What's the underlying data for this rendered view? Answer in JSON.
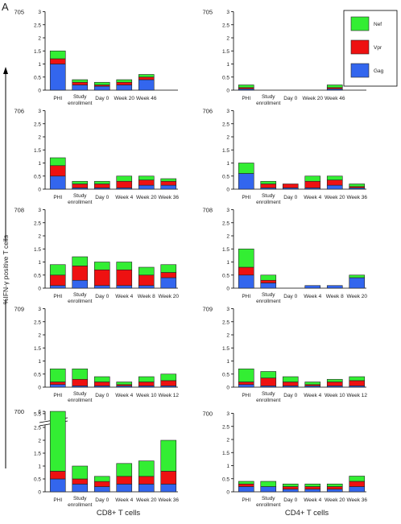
{
  "panel_letter": "A",
  "y_axis_label": "%IFN-γ positive T cells",
  "x_labels": {
    "left": "CD8+ T cells",
    "right": "CD4+ T cells"
  },
  "legend": [
    {
      "name": "Nef",
      "color": "#33ee33"
    },
    {
      "name": "Vpr",
      "color": "#ee1111"
    },
    {
      "name": "Gag",
      "color": "#3366ee"
    }
  ],
  "stack_order": [
    "Gag",
    "Vpr",
    "Nef"
  ],
  "chart_data": [
    {
      "type": "bar",
      "stacked": true,
      "patient": "705",
      "cell_type": "CD8+ T cells",
      "categories": [
        "PHI",
        "Study enrollment",
        "Day 0",
        "Week 20",
        "Week 46"
      ],
      "yticks": [
        "0",
        "0.5",
        "1",
        "1.5",
        "2",
        "2.5",
        "3"
      ],
      "ylim": [
        0,
        3
      ],
      "series": [
        {
          "name": "Gag",
          "values": [
            1.0,
            0.2,
            0.15,
            0.2,
            0.4
          ]
        },
        {
          "name": "Vpr",
          "values": [
            0.2,
            0.1,
            0.05,
            0.1,
            0.1
          ]
        },
        {
          "name": "Nef",
          "values": [
            0.3,
            0.1,
            0.1,
            0.1,
            0.1
          ]
        }
      ]
    },
    {
      "type": "bar",
      "stacked": true,
      "patient": "705",
      "cell_type": "CD4+ T cells",
      "categories": [
        "PHI",
        "Study enrollment",
        "Day 0",
        "Week 20",
        "Week 46"
      ],
      "yticks": [
        "0",
        "0.5",
        "1",
        "1.5",
        "2",
        "2.5",
        "3"
      ],
      "ylim": [
        0,
        3
      ],
      "series": [
        {
          "name": "Gag",
          "values": [
            0.05,
            0,
            0,
            0,
            0.05
          ]
        },
        {
          "name": "Vpr",
          "values": [
            0.05,
            0,
            0,
            0,
            0.05
          ]
        },
        {
          "name": "Nef",
          "values": [
            0.1,
            0,
            0,
            0,
            0.1
          ]
        }
      ]
    },
    {
      "type": "bar",
      "stacked": true,
      "patient": "706",
      "cell_type": "CD8+ T cells",
      "categories": [
        "PHI",
        "Study enrollment",
        "Day 0",
        "Week 4",
        "Week 20",
        "Week 36"
      ],
      "yticks": [
        "0",
        "0.5",
        "1",
        "1.5",
        "2",
        "2.5",
        "3"
      ],
      "ylim": [
        0,
        3
      ],
      "series": [
        {
          "name": "Gag",
          "values": [
            0.5,
            0.05,
            0.05,
            0.05,
            0.15,
            0.15
          ]
        },
        {
          "name": "Vpr",
          "values": [
            0.4,
            0.15,
            0.15,
            0.25,
            0.2,
            0.15
          ]
        },
        {
          "name": "Nef",
          "values": [
            0.3,
            0.1,
            0.1,
            0.2,
            0.15,
            0.1
          ]
        }
      ]
    },
    {
      "type": "bar",
      "stacked": true,
      "patient": "706",
      "cell_type": "CD4+ T cells",
      "categories": [
        "PHI",
        "Study enrollment",
        "Day 0",
        "Week 4",
        "Week 20",
        "Week 36"
      ],
      "yticks": [
        "0",
        "0.5",
        "1",
        "1.5",
        "2",
        "2.5",
        "3"
      ],
      "ylim": [
        0,
        3
      ],
      "series": [
        {
          "name": "Gag",
          "values": [
            0.6,
            0.05,
            0.05,
            0.05,
            0.15,
            0.05
          ]
        },
        {
          "name": "Vpr",
          "values": [
            0,
            0.15,
            0.15,
            0.25,
            0.2,
            0.05
          ]
        },
        {
          "name": "Nef",
          "values": [
            0.4,
            0.1,
            0,
            0.2,
            0.15,
            0.1
          ]
        }
      ]
    },
    {
      "type": "bar",
      "stacked": true,
      "patient": "708",
      "cell_type": "CD8+ T cells",
      "categories": [
        "PHI",
        "Study enrollment",
        "Day 0",
        "Week 4",
        "Week 8",
        "Week 20"
      ],
      "yticks": [
        "0",
        "0.5",
        "1",
        "1.5",
        "2",
        "2.5",
        "3"
      ],
      "ylim": [
        0,
        3
      ],
      "series": [
        {
          "name": "Gag",
          "values": [
            0.1,
            0.3,
            0.1,
            0.1,
            0.1,
            0.4
          ]
        },
        {
          "name": "Vpr",
          "values": [
            0.4,
            0.55,
            0.6,
            0.6,
            0.4,
            0.2
          ]
        },
        {
          "name": "Nef",
          "values": [
            0.4,
            0.35,
            0.3,
            0.3,
            0.3,
            0.3
          ]
        }
      ]
    },
    {
      "type": "bar",
      "stacked": true,
      "patient": "708",
      "cell_type": "CD4+ T cells",
      "categories": [
        "PHI",
        "Study enrollment",
        "Day 0",
        "Week 4",
        "Week 8",
        "Week 20"
      ],
      "yticks": [
        "0",
        "0.5",
        "1",
        "1.5",
        "2",
        "2.5",
        "3"
      ],
      "ylim": [
        0,
        3
      ],
      "series": [
        {
          "name": "Gag",
          "values": [
            0.5,
            0.2,
            0,
            0.1,
            0.1,
            0.4
          ]
        },
        {
          "name": "Vpr",
          "values": [
            0.3,
            0.1,
            0,
            0,
            0,
            0
          ]
        },
        {
          "name": "Nef",
          "values": [
            0.7,
            0.2,
            0,
            0,
            0,
            0.1
          ]
        }
      ]
    },
    {
      "type": "bar",
      "stacked": true,
      "patient": "709",
      "cell_type": "CD8+ T cells",
      "categories": [
        "PHI",
        "Study enrollment",
        "Day 0",
        "Week 4",
        "Week 10",
        "Week 12"
      ],
      "yticks": [
        "0",
        "0.5",
        "1",
        "1.5",
        "2",
        "2.5",
        "3"
      ],
      "ylim": [
        0,
        3
      ],
      "series": [
        {
          "name": "Gag",
          "values": [
            0.1,
            0.05,
            0.05,
            0.05,
            0.05,
            0.05
          ]
        },
        {
          "name": "Vpr",
          "values": [
            0.1,
            0.25,
            0.15,
            0.05,
            0.15,
            0.2
          ]
        },
        {
          "name": "Nef",
          "values": [
            0.5,
            0.4,
            0.2,
            0.1,
            0.2,
            0.25
          ]
        }
      ]
    },
    {
      "type": "bar",
      "stacked": true,
      "patient": "709",
      "cell_type": "CD4+ T cells",
      "categories": [
        "PHI",
        "Study enrollment",
        "Day 0",
        "Week 4",
        "Week 10",
        "Week 12"
      ],
      "yticks": [
        "0",
        "0.5",
        "1",
        "1.5",
        "2",
        "2.5",
        "3"
      ],
      "ylim": [
        0,
        3
      ],
      "series": [
        {
          "name": "Gag",
          "values": [
            0.1,
            0.05,
            0.05,
            0.05,
            0.05,
            0.05
          ]
        },
        {
          "name": "Vpr",
          "values": [
            0.1,
            0.3,
            0.15,
            0.05,
            0.15,
            0.2
          ]
        },
        {
          "name": "Nef",
          "values": [
            0.5,
            0.25,
            0.2,
            0.1,
            0.1,
            0.15
          ]
        }
      ]
    },
    {
      "type": "bar",
      "stacked": true,
      "patient": "700",
      "cell_type": "CD8+ T cells",
      "axis_break": true,
      "categories": [
        "PHI",
        "Study enrollment",
        "Day 0",
        "Week 4",
        "Week 20",
        "Week 36"
      ],
      "yticks": [
        "0",
        "0.5",
        "1",
        "1.5",
        "2",
        "2.5",
        "3",
        "5.5",
        "6"
      ],
      "ylim": [
        0,
        6
      ],
      "series": [
        {
          "name": "Gag",
          "values": [
            0.5,
            0.3,
            0.2,
            0.3,
            0.3,
            0.3
          ]
        },
        {
          "name": "Vpr",
          "values": [
            0.3,
            0.2,
            0.2,
            0.3,
            0.3,
            0.5
          ]
        },
        {
          "name": "Nef",
          "values": [
            5.2,
            0.5,
            0.2,
            0.5,
            0.6,
            1.2
          ]
        }
      ]
    },
    {
      "type": "bar",
      "stacked": true,
      "patient": "700",
      "cell_type": "CD4+ T cells",
      "categories": [
        "PHI",
        "Study enrollment",
        "Day 0",
        "Week 4",
        "Week 20",
        "Week 36"
      ],
      "yticks": [
        "0",
        "0.5",
        "1",
        "1.5",
        "2",
        "2.5",
        "3"
      ],
      "ylim": [
        0,
        3
      ],
      "series": [
        {
          "name": "Gag",
          "values": [
            0.2,
            0.2,
            0.1,
            0.1,
            0.1,
            0.2
          ]
        },
        {
          "name": "Vpr",
          "values": [
            0.1,
            0,
            0.1,
            0.1,
            0.1,
            0.2
          ]
        },
        {
          "name": "Nef",
          "values": [
            0.1,
            0.2,
            0.1,
            0.1,
            0.1,
            0.2
          ]
        }
      ]
    }
  ]
}
